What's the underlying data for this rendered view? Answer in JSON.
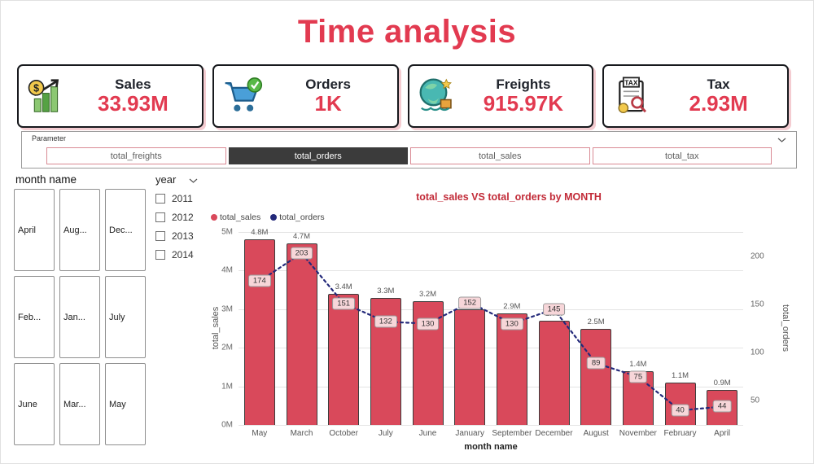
{
  "page": {
    "title": "Time analysis"
  },
  "cards": [
    {
      "label": "Sales",
      "value": "33.93M",
      "icon": "sales-icon"
    },
    {
      "label": "Orders",
      "value": "1K",
      "icon": "orders-icon"
    },
    {
      "label": "Freights",
      "value": "915.97K",
      "icon": "freights-icon"
    },
    {
      "label": "Tax",
      "value": "2.93M",
      "icon": "tax-icon"
    }
  ],
  "parameter": {
    "label": "Parameter",
    "options": [
      {
        "label": "total_freights",
        "selected": false
      },
      {
        "label": "total_orders",
        "selected": true
      },
      {
        "label": "total_sales",
        "selected": false
      },
      {
        "label": "total_tax",
        "selected": false
      }
    ]
  },
  "month_slicer": {
    "title": "month name",
    "items": [
      "April",
      "Aug...",
      "Dec...",
      "Feb...",
      "Jan...",
      "July",
      "June",
      "Mar...",
      "May"
    ]
  },
  "year_filter": {
    "title": "year",
    "options": [
      {
        "label": "2011",
        "checked": false
      },
      {
        "label": "2012",
        "checked": false
      },
      {
        "label": "2013",
        "checked": false
      },
      {
        "label": "2014",
        "checked": false
      }
    ]
  },
  "chart_data": {
    "type": "combo-bar-line",
    "title": "total_sales VS total_orders by MONTH",
    "xlabel": "month name",
    "ylabel_left": "total_sales",
    "ylabel_right": "total_orders",
    "categories": [
      "May",
      "March",
      "October",
      "July",
      "June",
      "January",
      "September",
      "December",
      "August",
      "November",
      "February",
      "April"
    ],
    "series": [
      {
        "name": "total_sales",
        "type": "bar",
        "axis": "left",
        "color": "#d9495b",
        "values": [
          4.8,
          4.7,
          3.4,
          3.3,
          3.2,
          3.0,
          2.9,
          2.7,
          2.5,
          1.4,
          1.1,
          0.9
        ],
        "labels": [
          "4.8M",
          "4.7M",
          "3.4M",
          "3.3M",
          "3.2M",
          "3.0M",
          "2.9M",
          "2.7M",
          "2.5M",
          "1.4M",
          "1.1M",
          "0.9M"
        ]
      },
      {
        "name": "total_orders",
        "type": "line",
        "axis": "right",
        "color": "#23297a",
        "values": [
          174,
          203,
          151,
          132,
          130,
          152,
          130,
          145,
          89,
          75,
          40,
          44
        ]
      }
    ],
    "left_axis": {
      "ticks": [
        "0M",
        "1M",
        "2M",
        "3M",
        "4M",
        "5M"
      ],
      "range": [
        0,
        5
      ]
    },
    "right_axis": {
      "ticks": [
        50,
        100,
        150,
        200
      ],
      "range": [
        25,
        225
      ]
    },
    "grid": true,
    "legend_position": "top-left"
  },
  "colors": {
    "accent_red": "#e23a50",
    "chart_title_red": "#c22b38",
    "bar_fill": "#d9495b",
    "line_navy": "#23297a",
    "selected_button_bg": "#3b3b3b"
  }
}
